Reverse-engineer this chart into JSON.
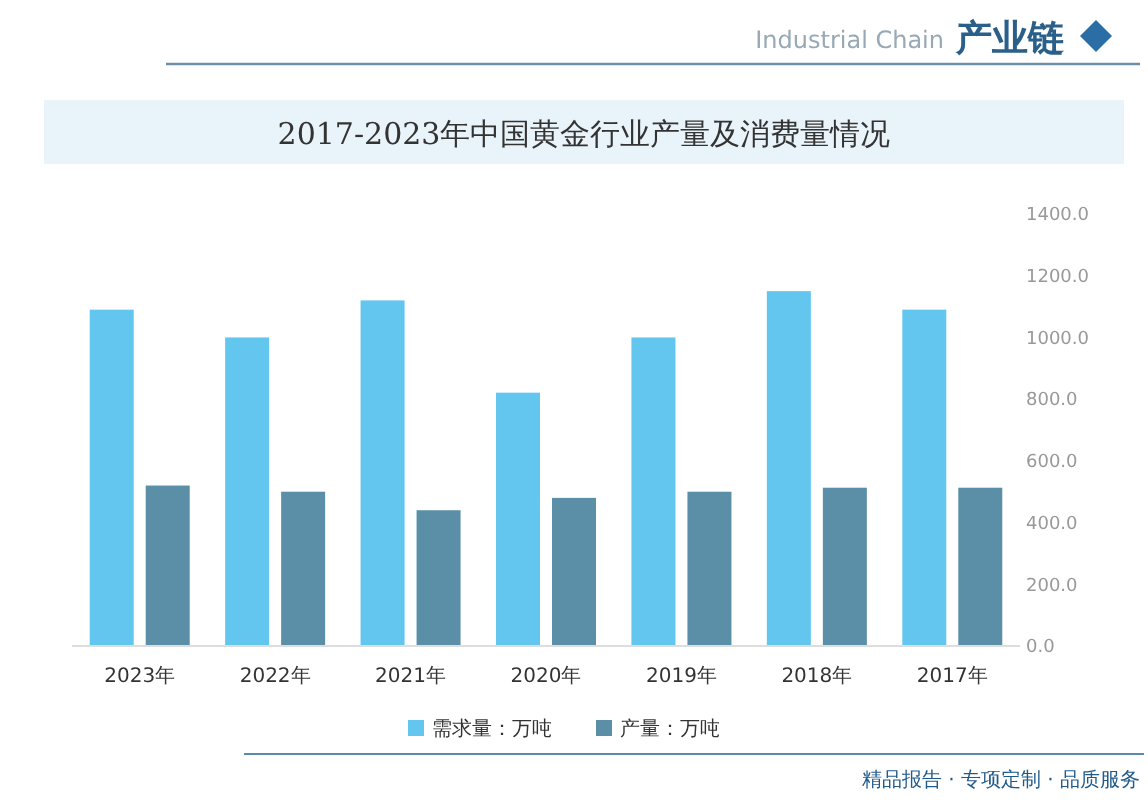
{
  "chart_data": {
    "type": "bar",
    "title": "2017-2023年中国黄金行业产量及消费量情况",
    "categories": [
      "2023年",
      "2022年",
      "2021年",
      "2020年",
      "2019年",
      "2018年",
      "2017年"
    ],
    "series": [
      {
        "name": "需求量：万吨",
        "color": "#62c6ef",
        "values": [
          1090,
          1000,
          1120,
          821,
          1000,
          1150,
          1090
        ]
      },
      {
        "name": "产量：万吨",
        "color": "#5b8fa8",
        "values": [
          520,
          500,
          440,
          480,
          500,
          513,
          513
        ]
      }
    ],
    "ylim": [
      0,
      1400
    ],
    "yticks": [
      {
        "value": 0,
        "label": "0.0"
      },
      {
        "value": 200,
        "label": "200.0"
      },
      {
        "value": 400,
        "label": "400.0"
      },
      {
        "value": 600,
        "label": "600.0"
      },
      {
        "value": 800,
        "label": "800.0"
      },
      {
        "value": 1000,
        "label": "1000.0"
      },
      {
        "value": 1200,
        "label": "1200.0"
      },
      {
        "value": 1400,
        "label": "1400.0"
      }
    ],
    "legend": "bottom",
    "annotations": [
      "产业链",
      "Industrial Chain",
      "精品报告 · 专项定制 · 品质服务"
    ]
  }
}
